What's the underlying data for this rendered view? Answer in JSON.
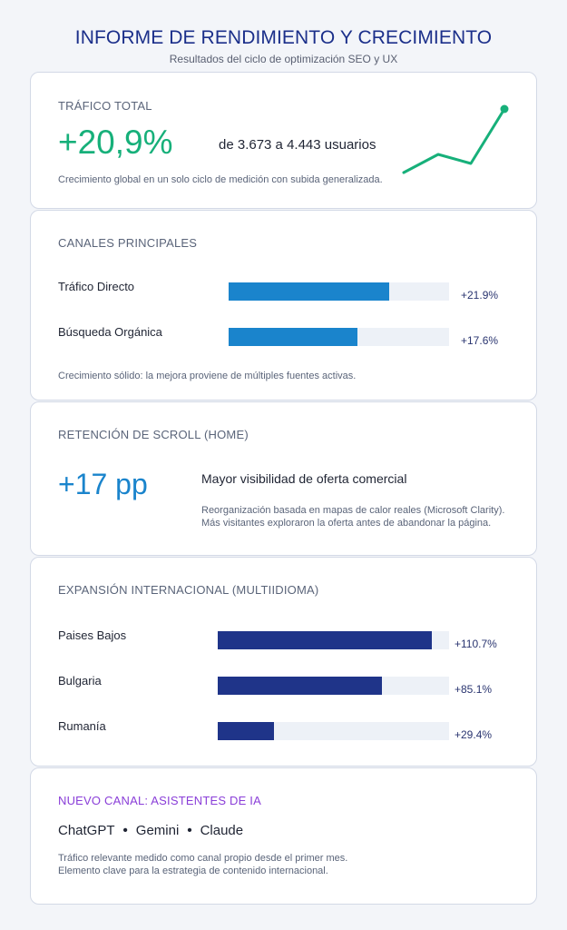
{
  "header": {
    "title": "INFORME DE RENDIMIENTO Y CRECIMIENTO",
    "subtitle": "Resultados del ciclo de optimización SEO y UX"
  },
  "traffic": {
    "section_title": "TRÁFICO TOTAL",
    "growth": "+20,9%",
    "range": "de 3.673 a 4.443 usuarios",
    "note": "Crecimiento global en un solo ciclo de medición con subida generalizada.",
    "accent_color": "#17b07a"
  },
  "channels": {
    "section_title": "CANALES PRINCIPALES",
    "bar_color": "#1a84cc",
    "items": [
      {
        "label": "Tráfico Directo",
        "value": "+21.9%",
        "fill": 0.73
      },
      {
        "label": "Búsqueda Orgánica",
        "value": "+17.6%",
        "fill": 0.585
      }
    ],
    "note": "Crecimiento sólido: la mejora proviene de múltiples fuentes activas."
  },
  "scroll": {
    "section_title": "RETENCIÓN DE SCROLL (HOME)",
    "value": "+17 pp",
    "headline": "Mayor visibilidad de oferta comercial",
    "desc_line1": "Reorganización basada en mapas de calor reales (Microsoft Clarity).",
    "desc_line2": "Más visitantes exploraron la oferta antes de abandonar la página.",
    "accent_color": "#1a84cc"
  },
  "international": {
    "section_title": "EXPANSIÓN INTERNACIONAL (MULTIIDIOMA)",
    "bar_color": "#1f3489",
    "items": [
      {
        "label": "Paises Bajos",
        "value": "+110.7%",
        "fill": 0.925
      },
      {
        "label": "Bulgaria",
        "value": "+85.1%",
        "fill": 0.708
      },
      {
        "label": "Rumanía",
        "value": "+29.4%",
        "fill": 0.244
      }
    ]
  },
  "ai": {
    "section_title": "NUEVO CANAL: ASISTENTES DE IA",
    "assistants": [
      "ChatGPT",
      "Gemini",
      "Claude"
    ],
    "separator": "•",
    "note_line1": "Tráfico relevante medido como canal propio desde el primer mes.",
    "note_line2": "Elemento clave para la estrategia de contenido internacional.",
    "accent_color": "#8a3ed8"
  }
}
